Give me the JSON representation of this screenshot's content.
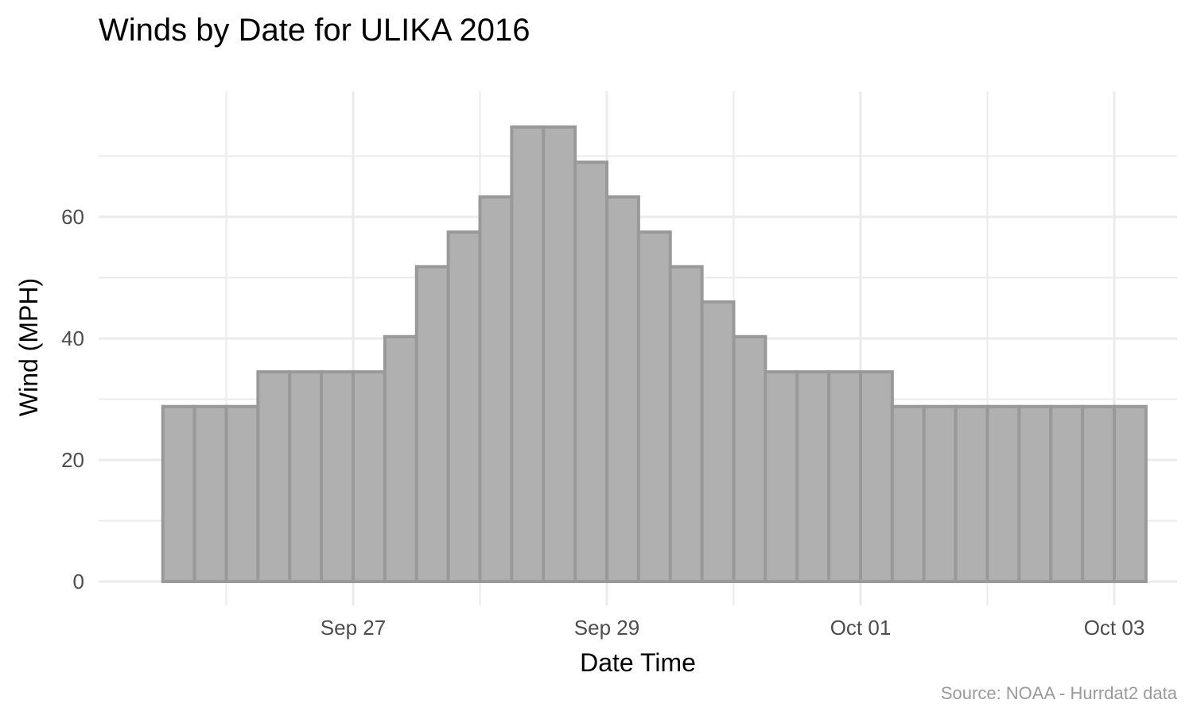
{
  "chart_data": {
    "type": "bar",
    "title": "Winds by Date for ULIKA 2016",
    "xlabel": "Date Time",
    "ylabel": "Wind (MPH)",
    "caption": "Source: NOAA - Hurrdat2 data",
    "ylim": [
      0,
      77
    ],
    "y_ticks": [
      0,
      20,
      40,
      60
    ],
    "x_range_days": [
      -1.75,
      6.75
    ],
    "x_ticks": [
      {
        "day": 1,
        "label": "Sep 27"
      },
      {
        "day": 3,
        "label": "Sep 29"
      },
      {
        "day": 5,
        "label": "Oct 01"
      },
      {
        "day": 7,
        "label": "Oct 03"
      }
    ],
    "bar_interval_hours": 6,
    "start_day": -0.5,
    "values": [
      28.8,
      28.8,
      28.8,
      34.5,
      34.5,
      34.5,
      34.5,
      40.3,
      51.8,
      57.5,
      63.3,
      74.8,
      74.8,
      69.0,
      63.3,
      57.5,
      51.8,
      46.0,
      40.3,
      34.5,
      34.5,
      34.5,
      34.5,
      28.8,
      28.8,
      28.8,
      28.8,
      28.8,
      28.8,
      28.8,
      28.8
    ]
  }
}
